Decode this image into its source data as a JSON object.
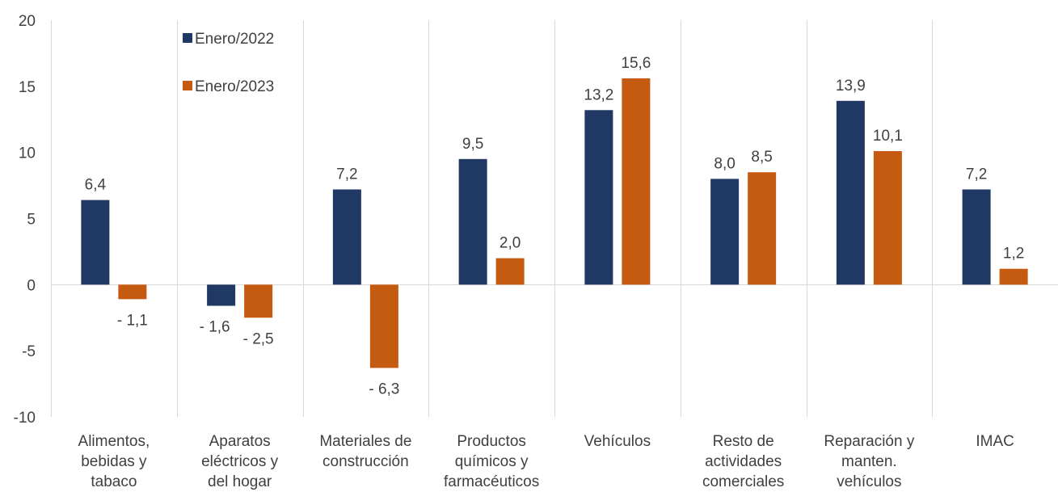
{
  "chart_data": {
    "type": "bar",
    "categories": [
      [
        "Alimentos,",
        "bebidas y",
        "tabaco"
      ],
      [
        "Aparatos",
        "eléctricos y",
        "del hogar"
      ],
      [
        "Materiales de",
        "construcción"
      ],
      [
        "Productos",
        "químicos y",
        "farmacéuticos"
      ],
      [
        "Vehículos"
      ],
      [
        "Resto de",
        "actividades",
        "comerciales"
      ],
      [
        "Reparación y",
        "manten.",
        "vehículos"
      ],
      [
        "IMAC"
      ]
    ],
    "series": [
      {
        "name": "Enero/2022",
        "color": "#203864",
        "values": [
          6.4,
          -1.6,
          7.2,
          9.5,
          13.2,
          8.0,
          13.9,
          7.2
        ],
        "labels": [
          "6,4",
          "- 1,6",
          "7,2",
          "9,5",
          "13,2",
          "8,0",
          "13,9",
          "7,2"
        ]
      },
      {
        "name": "Enero/2023",
        "color": "#C55A11",
        "values": [
          -1.1,
          -2.5,
          -6.3,
          2.0,
          15.6,
          8.5,
          10.1,
          1.2
        ],
        "labels": [
          "- 1,1",
          "- 2,5",
          "- 6,3",
          "2,0",
          "15,6",
          "8,5",
          "10,1",
          "1,2"
        ]
      }
    ],
    "yticks": [
      "20",
      "15",
      "10",
      "5",
      "0",
      "-5",
      "-10"
    ],
    "ylim": [
      -10,
      20
    ],
    "grid": "vertical separators between categories",
    "legend_position": "top-left inside plot",
    "title": "",
    "xlabel": "",
    "ylabel": ""
  }
}
